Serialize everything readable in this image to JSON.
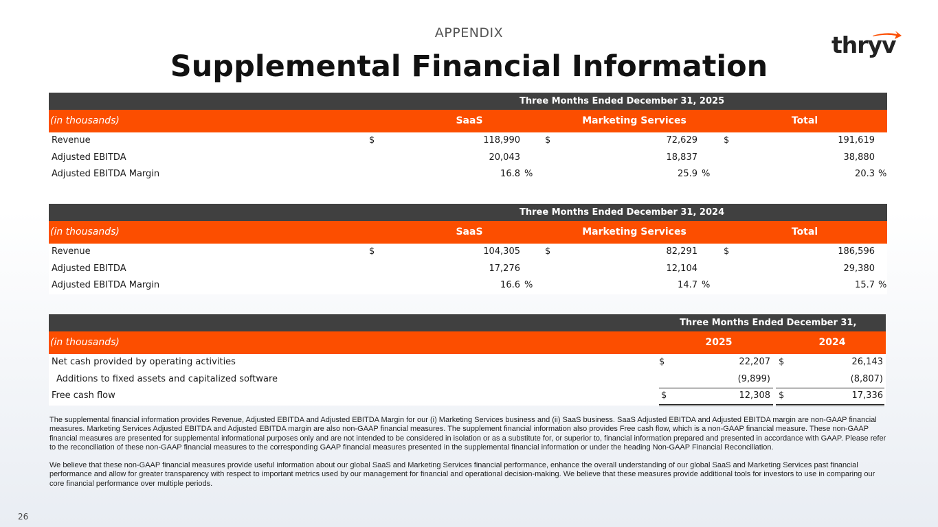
{
  "header": {
    "section": "APPENDIX",
    "title": "Supplemental Financial Information",
    "logo_text": "thryv"
  },
  "table_2025": {
    "period": "Three Months Ended December 31, 2025",
    "unit_label": "(in thousands)",
    "columns": [
      "SaaS",
      "Marketing Services",
      "Total"
    ],
    "rows": [
      {
        "label": "Revenue",
        "saas_sym": "$",
        "saas": "118,990",
        "ms_sym": "$",
        "ms": "72,629",
        "total_sym": "$",
        "total": "191,619"
      },
      {
        "label": "Adjusted EBITDA",
        "saas": "20,043",
        "ms": "18,837",
        "total": "38,880"
      },
      {
        "label": "Adjusted EBITDA Margin",
        "saas": "16.8",
        "saas_pct": "%",
        "ms": "25.9",
        "ms_pct": "%",
        "total": "20.3",
        "total_pct": "%"
      }
    ]
  },
  "table_2024": {
    "period": "Three Months Ended December 31, 2024",
    "unit_label": "(in thousands)",
    "columns": [
      "SaaS",
      "Marketing Services",
      "Total"
    ],
    "rows": [
      {
        "label": "Revenue",
        "saas_sym": "$",
        "saas": "104,305",
        "ms_sym": "$",
        "ms": "82,291",
        "total_sym": "$",
        "total": "186,596"
      },
      {
        "label": "Adjusted EBITDA",
        "saas": "17,276",
        "ms": "12,104",
        "total": "29,380"
      },
      {
        "label": "Adjusted EBITDA Margin",
        "saas": "16.6",
        "saas_pct": "%",
        "ms": "14.7",
        "ms_pct": "%",
        "total": "15.7",
        "total_pct": "%"
      }
    ]
  },
  "cash_table": {
    "period": "Three Months Ended December 31,",
    "unit_label": "(in thousands)",
    "columns": [
      "2025",
      "2024"
    ],
    "rows": [
      {
        "label": "Net cash provided by operating activities",
        "sym_a": "$",
        "a": "22,207",
        "sym_b": "$",
        "b": "26,143"
      },
      {
        "label": "Additions to fixed assets and capitalized software",
        "a": "(9,899)",
        "b": "(8,807)"
      },
      {
        "label": "Free cash flow",
        "sym_a": "$",
        "a": "12,308",
        "sym_b": "$",
        "b": "17,336"
      }
    ]
  },
  "notes": [
    "The supplemental financial information provides Revenue, Adjusted EBITDA and Adjusted EBITDA Margin for our (i) Marketing Services business and (ii) SaaS business. SaaS Adjusted EBITDA and Adjusted EBITDA margin are non-GAAP financial measures. Marketing Services Adjusted EBITDA and Adjusted EBITDA margin are also non-GAAP financial measures. The supplement financial information also provides Free cash flow, which is a non-GAAP financial measure.  These non-GAAP financial measures are presented for supplemental informational purposes only and are not intended to be considered in isolation or as a substitute for, or superior to, financial information prepared and presented in accordance with GAAP. Please refer to the reconciliation of these non-GAAP financial measures to the corresponding GAAP financial measures presented in the supplemental financial information or under the heading Non-GAAP Financial Reconciliation.",
    "We believe that these non-GAAP financial measures provide useful information about our global SaaS and Marketing Services financial performance, enhance the overall understanding of our global SaaS and Marketing Services past financial performance and allow for greater transparency with respect to important metrics used by our management for financial and operational decision-making. We believe that these measures provide additional tools for investors to use in comparing our core financial performance over multiple periods."
  ],
  "page_number": "26",
  "colors": {
    "accent": "#fc4e00",
    "header_dark": "#404040"
  }
}
